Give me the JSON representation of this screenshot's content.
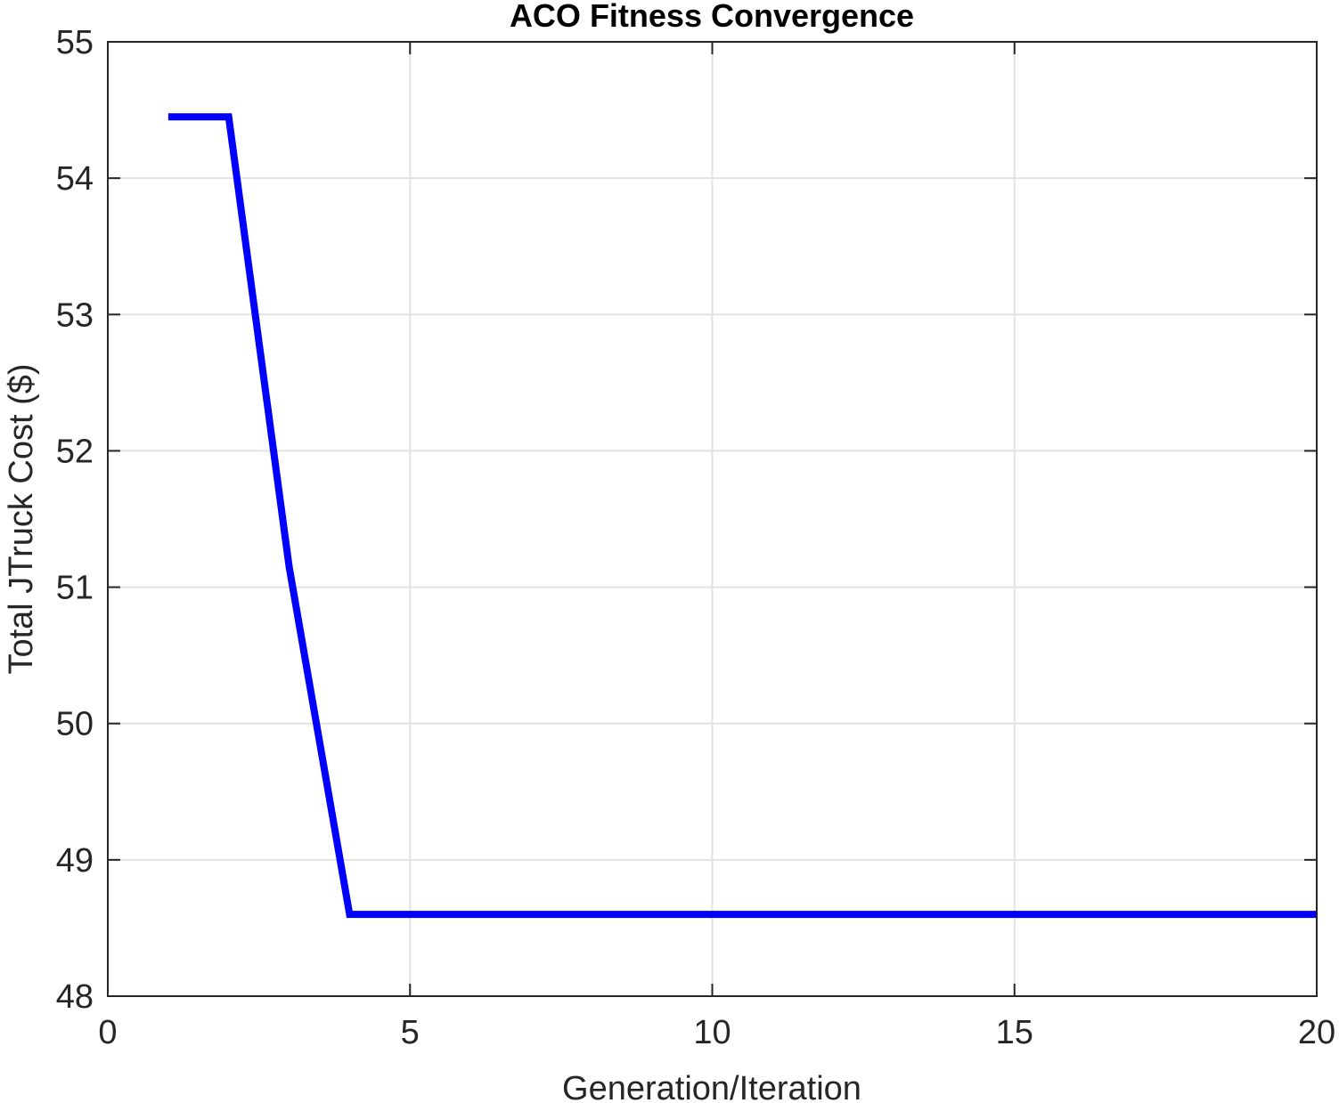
{
  "chart_data": {
    "type": "line",
    "title": "ACO Fitness Convergence",
    "xlabel": "Generation/Iteration",
    "ylabel": "Total JTruck Cost ($)",
    "xlim": [
      0,
      20
    ],
    "ylim": [
      48,
      55
    ],
    "xticks": [
      0,
      5,
      10,
      15,
      20
    ],
    "yticks": [
      48,
      49,
      50,
      51,
      52,
      53,
      54,
      55
    ],
    "grid": true,
    "box": true,
    "series": [
      {
        "color": "#0000ff",
        "x": [
          1,
          2,
          3,
          4,
          5,
          6,
          7,
          8,
          9,
          10,
          11,
          12,
          13,
          14,
          15,
          16,
          17,
          18,
          19,
          20
        ],
        "y": [
          54.45,
          54.45,
          51.15,
          48.6,
          48.6,
          48.6,
          48.6,
          48.6,
          48.6,
          48.6,
          48.6,
          48.6,
          48.6,
          48.6,
          48.6,
          48.6,
          48.6,
          48.6,
          48.6,
          48.6
        ]
      }
    ]
  }
}
